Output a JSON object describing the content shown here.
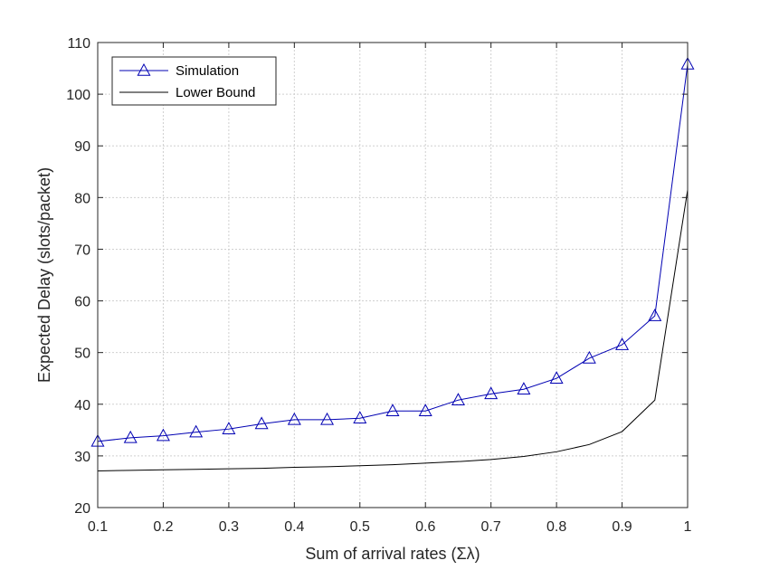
{
  "chart_data": {
    "type": "line",
    "xlabel": "Sum of arrival rates (Σλ)",
    "ylabel": "Expected Delay (slots/packet)",
    "xlim": [
      0.1,
      1.0
    ],
    "ylim": [
      20,
      110
    ],
    "xticks": [
      0.1,
      0.2,
      0.3,
      0.4,
      0.5,
      0.6,
      0.7,
      0.8,
      0.9,
      1.0
    ],
    "xtick_labels": [
      "0.1",
      "0.2",
      "0.3",
      "0.4",
      "0.5",
      "0.6",
      "0.7",
      "0.8",
      "0.9",
      "1"
    ],
    "yticks": [
      20,
      30,
      40,
      50,
      60,
      70,
      80,
      90,
      100,
      110
    ],
    "ytick_labels": [
      "20",
      "30",
      "40",
      "50",
      "60",
      "70",
      "80",
      "90",
      "100",
      "110"
    ],
    "grid": true,
    "legend_position": "top-left",
    "series": [
      {
        "name": "Simulation",
        "color": "#0000b3",
        "marker": "triangle",
        "x": [
          0.1,
          0.15,
          0.2,
          0.25,
          0.3,
          0.35,
          0.4,
          0.45,
          0.5,
          0.55,
          0.6,
          0.65,
          0.7,
          0.75,
          0.8,
          0.85,
          0.9,
          0.95,
          1.0
        ],
        "y": [
          32.8,
          33.5,
          33.9,
          34.6,
          35.2,
          36.2,
          37.0,
          37.0,
          37.3,
          38.7,
          38.7,
          40.8,
          42.0,
          42.9,
          45.0,
          48.9,
          51.5,
          57.1,
          105.8
        ]
      },
      {
        "name": "Lower Bound",
        "color": "#000000",
        "marker": "none",
        "x": [
          0.1,
          0.15,
          0.2,
          0.25,
          0.3,
          0.35,
          0.4,
          0.45,
          0.5,
          0.55,
          0.6,
          0.65,
          0.7,
          0.75,
          0.8,
          0.85,
          0.9,
          0.95,
          1.0
        ],
        "y": [
          27.1,
          27.2,
          27.3,
          27.4,
          27.5,
          27.6,
          27.8,
          27.9,
          28.1,
          28.3,
          28.6,
          28.9,
          29.3,
          29.9,
          30.8,
          32.2,
          34.7,
          40.8,
          81.5
        ]
      }
    ]
  }
}
